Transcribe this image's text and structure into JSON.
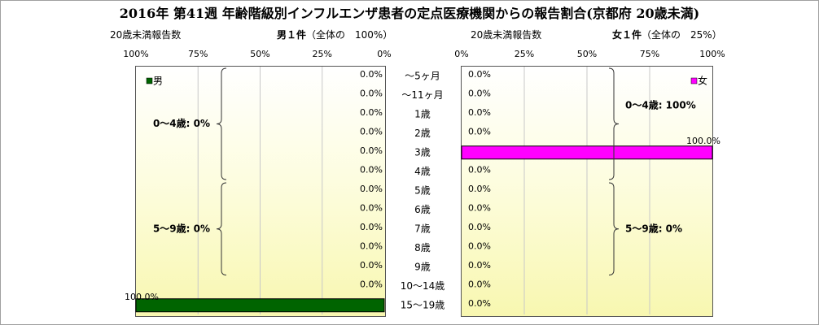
{
  "title": "2016年 第41週 年齢階級別インフルエンザ患者の定点医療機関からの報告割合(京都府 20歳未満)",
  "left_panel": {
    "subtitle": "20歳未満報告数",
    "header_main": "男１件",
    "header_paren": "（全体の　100%）",
    "legend": "男",
    "ticks": [
      "100%",
      "75%",
      "50%",
      "25%",
      "0%"
    ],
    "color": "#006400"
  },
  "right_panel": {
    "subtitle": "20歳未満報告数",
    "header_main": "女１件",
    "header_paren": "（全体の　25%）",
    "legend": "女",
    "ticks": [
      "0%",
      "25%",
      "50%",
      "75%",
      "100%"
    ],
    "color": "#ff00ff"
  },
  "chart_data": {
    "type": "bar",
    "categories": [
      "～5ヶ月",
      "～11ヶ月",
      "1歳",
      "2歳",
      "3歳",
      "4歳",
      "5歳",
      "6歳",
      "7歳",
      "8歳",
      "9歳",
      "10～14歳",
      "15～19歳"
    ],
    "series": [
      {
        "name": "男",
        "values": [
          0,
          0,
          0,
          0,
          0,
          0,
          0,
          0,
          0,
          0,
          0,
          0,
          100
        ],
        "labels": [
          "0.0%",
          "0.0%",
          "0.0%",
          "0.0%",
          "0.0%",
          "0.0%",
          "0.0%",
          "0.0%",
          "0.0%",
          "0.0%",
          "0.0%",
          "0.0%",
          "100.0%"
        ]
      },
      {
        "name": "女",
        "values": [
          0,
          0,
          0,
          0,
          100,
          0,
          0,
          0,
          0,
          0,
          0,
          0,
          0
        ],
        "labels": [
          "0.0%",
          "0.0%",
          "0.0%",
          "0.0%",
          "100.0%",
          "0.0%",
          "0.0%",
          "0.0%",
          "0.0%",
          "0.0%",
          "0.0%",
          "0.0%",
          "0.0%"
        ]
      }
    ],
    "xlim": [
      0,
      100
    ],
    "groups": {
      "male": [
        "0～4歳: 0%",
        "5～9歳: 0%"
      ],
      "female": [
        "0～4歳: 100%",
        "5～9歳: 0%"
      ]
    }
  }
}
